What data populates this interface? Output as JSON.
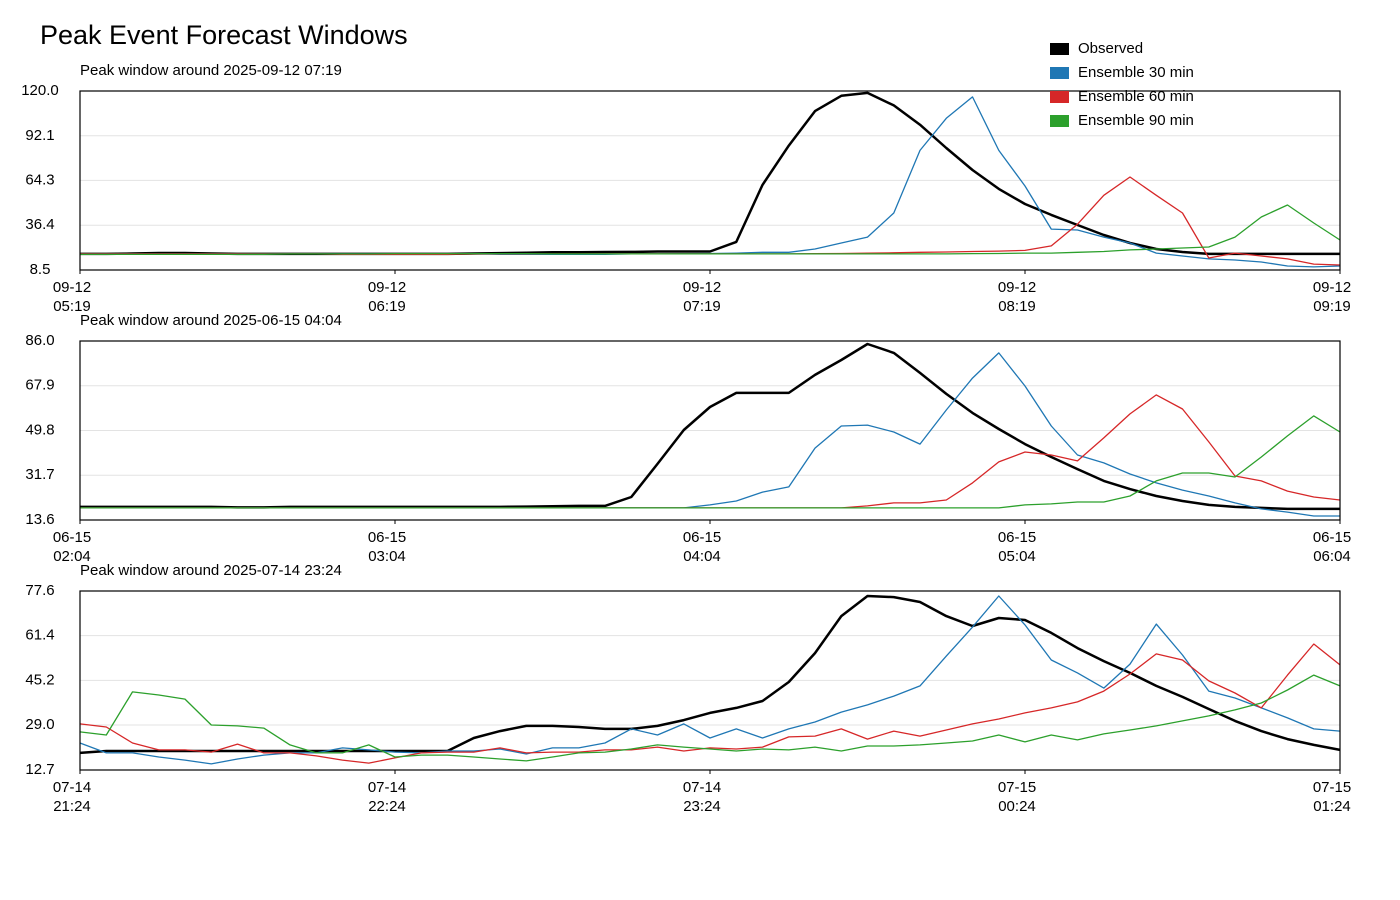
{
  "title": "Peak Event Forecast Windows",
  "legend": "upper right",
  "chart_data": [
    {
      "type": "line",
      "title": "Peak window around 2025-09-12 07:19",
      "grid": true,
      "x": [
        "09-12 05:19",
        "09-12 05:24",
        "09-12 05:29",
        "09-12 05:34",
        "09-12 05:39",
        "09-12 05:44",
        "09-12 05:49",
        "09-12 05:54",
        "09-12 05:59",
        "09-12 06:04",
        "09-12 06:09",
        "09-12 06:14",
        "09-12 06:19",
        "09-12 06:24",
        "09-12 06:29",
        "09-12 06:34",
        "09-12 06:39",
        "09-12 06:44",
        "09-12 06:49",
        "09-12 06:54",
        "09-12 06:59",
        "09-12 07:04",
        "09-12 07:09",
        "09-12 07:14",
        "09-12 07:19",
        "09-12 07:24",
        "09-12 07:29",
        "09-12 07:34",
        "09-12 07:39",
        "09-12 07:44",
        "09-12 07:49",
        "09-12 07:54",
        "09-12 07:59",
        "09-12 08:04",
        "09-12 08:09",
        "09-12 08:14",
        "09-12 08:19",
        "09-12 08:24",
        "09-12 08:29",
        "09-12 08:34",
        "09-12 08:39",
        "09-12 08:44",
        "09-12 08:49",
        "09-12 08:54",
        "09-12 08:59",
        "09-12 09:04",
        "09-12 09:09",
        "09-12 09:14",
        "09-12 09:19"
      ],
      "xlim": [
        "09-12 05:19",
        "09-12 09:19"
      ],
      "xticks": [
        {
          "value": "09-12 05:19",
          "label": "09-12\n05:19"
        },
        {
          "value": "09-12 06:19",
          "label": "09-12\n06:19"
        },
        {
          "value": "09-12 07:19",
          "label": "09-12\n07:19"
        },
        {
          "value": "09-12 08:19",
          "label": "09-12\n08:19"
        },
        {
          "value": "09-12 09:19",
          "label": "09-12\n09:19"
        }
      ],
      "ylim": [
        8.5,
        120
      ],
      "yticks": [
        8.5,
        36.4,
        64.3,
        92.1,
        {
          "value": 120,
          "label": "120.0"
        }
      ],
      "series": [
        {
          "name": "Observed",
          "color": "#000000",
          "width": 2.5,
          "values": [
            18.5,
            18.5,
            18.8,
            19.1,
            19.1,
            18.8,
            18.5,
            18.5,
            18.5,
            18.5,
            18.5,
            18.5,
            18.5,
            18.5,
            18.5,
            18.8,
            19,
            19.2,
            19.5,
            19.5,
            19.7,
            19.8,
            20,
            20,
            20,
            26,
            61.5,
            86,
            107.5,
            117,
            118.8,
            111,
            99,
            84.5,
            70.8,
            59,
            49.6,
            42.8,
            36.5,
            30.3,
            25.3,
            21.6,
            19.7,
            18.5,
            18.5,
            18.5,
            18.5,
            18.5,
            18.5
          ]
        },
        {
          "name": "Ensemble 30 min",
          "color": "#1f77b4",
          "width": 1.3,
          "values": [
            18.5,
            18.5,
            18.5,
            18.5,
            18.5,
            18.5,
            18.5,
            18.5,
            18.5,
            18.5,
            18.5,
            18.5,
            18.5,
            18.5,
            18.5,
            18.5,
            18.2,
            18.2,
            18.2,
            18.2,
            18.2,
            18.5,
            18.5,
            18.7,
            18.8,
            19,
            19.5,
            19.5,
            21.6,
            25.3,
            29,
            44,
            83,
            103,
            116.3,
            83,
            60.8,
            34,
            33.4,
            29,
            25.3,
            19,
            17.2,
            15.4,
            14.7,
            13.5,
            11,
            10.4,
            11
          ]
        },
        {
          "name": "Ensemble 60 min",
          "color": "#d62728",
          "width": 1.3,
          "values": [
            18.5,
            18.5,
            18.5,
            18.5,
            18.5,
            18.5,
            18.5,
            18.5,
            18.5,
            18.5,
            18.3,
            18.3,
            18.3,
            18.3,
            18.3,
            18.5,
            18.5,
            18.5,
            18.5,
            18.5,
            18.5,
            18.5,
            18.5,
            18.5,
            18.5,
            18.5,
            18.5,
            18.5,
            18.7,
            18.8,
            19,
            19.2,
            19.5,
            19.7,
            20,
            20.3,
            20.7,
            23.5,
            37,
            55,
            66.4,
            55,
            44,
            16,
            19,
            17.2,
            15.4,
            12.2,
            11.6
          ]
        },
        {
          "name": "Ensemble 90 min",
          "color": "#2ca02c",
          "width": 1.3,
          "values": [
            18.2,
            18.2,
            18.2,
            18.2,
            18.2,
            18.2,
            18.2,
            18.3,
            18.5,
            18.5,
            18.5,
            18.5,
            18.7,
            18.7,
            18.7,
            18.7,
            18.7,
            18.7,
            18.5,
            18.5,
            18.5,
            18.5,
            18.5,
            18.5,
            18.5,
            18.5,
            18.5,
            18.5,
            18.5,
            18.5,
            18.5,
            18.5,
            18.5,
            18.5,
            18.7,
            18.8,
            19,
            19,
            19.5,
            20,
            21,
            21.6,
            22.2,
            22.8,
            29,
            41.5,
            49,
            37.8,
            27.2
          ]
        }
      ]
    },
    {
      "type": "line",
      "title": "Peak window around 2025-06-15 04:04",
      "grid": true,
      "x": [
        "06-15 02:04",
        "06-15 02:09",
        "06-15 02:14",
        "06-15 02:19",
        "06-15 02:24",
        "06-15 02:29",
        "06-15 02:34",
        "06-15 02:39",
        "06-15 02:44",
        "06-15 02:49",
        "06-15 02:54",
        "06-15 02:59",
        "06-15 03:04",
        "06-15 03:09",
        "06-15 03:14",
        "06-15 03:19",
        "06-15 03:24",
        "06-15 03:29",
        "06-15 03:34",
        "06-15 03:39",
        "06-15 03:44",
        "06-15 03:49",
        "06-15 03:54",
        "06-15 03:59",
        "06-15 04:04",
        "06-15 04:09",
        "06-15 04:14",
        "06-15 04:19",
        "06-15 04:24",
        "06-15 04:29",
        "06-15 04:34",
        "06-15 04:39",
        "06-15 04:44",
        "06-15 04:49",
        "06-15 04:54",
        "06-15 04:59",
        "06-15 05:04",
        "06-15 05:09",
        "06-15 05:14",
        "06-15 05:19",
        "06-15 05:24",
        "06-15 05:29",
        "06-15 05:34",
        "06-15 05:39",
        "06-15 05:44",
        "06-15 05:49",
        "06-15 05:54",
        "06-15 05:59",
        "06-15 06:04"
      ],
      "xlim": [
        "06-15 02:04",
        "06-15 06:04"
      ],
      "xticks": [
        {
          "value": "06-15 02:04",
          "label": "06-15\n02:04"
        },
        {
          "value": "06-15 03:04",
          "label": "06-15\n03:04"
        },
        {
          "value": "06-15 04:04",
          "label": "06-15\n04:04"
        },
        {
          "value": "06-15 05:04",
          "label": "06-15\n05:04"
        },
        {
          "value": "06-15 06:04",
          "label": "06-15\n06:04"
        }
      ],
      "ylim": [
        13.6,
        86
      ],
      "yticks": [
        13.6,
        31.7,
        49.8,
        67.9,
        {
          "value": 86,
          "label": "86.0"
        }
      ],
      "series": [
        {
          "name": "Observed",
          "color": "#000000",
          "width": 2.5,
          "values": [
            18.9,
            18.9,
            18.9,
            18.9,
            18.9,
            18.9,
            18.7,
            18.7,
            18.9,
            18.9,
            18.9,
            18.9,
            18.9,
            18.9,
            18.9,
            18.9,
            18.9,
            19,
            19.2,
            19.3,
            19.3,
            22.9,
            36.3,
            50,
            59.3,
            65,
            65,
            65,
            72.3,
            78.3,
            84.8,
            81.2,
            73.1,
            64.6,
            56.9,
            50.4,
            44.3,
            39.1,
            34.2,
            29.4,
            26.1,
            23.3,
            21.3,
            19.7,
            18.9,
            18.5,
            18.1,
            18.1,
            18.1
          ]
        },
        {
          "name": "Ensemble 30 min",
          "color": "#1f77b4",
          "width": 1.3,
          "values": [
            18.5,
            18.5,
            18.5,
            18.5,
            18.5,
            18.5,
            18.5,
            18.5,
            18.5,
            18.5,
            18.5,
            18.5,
            18.5,
            18.5,
            18.5,
            18.5,
            18.5,
            18.5,
            18.5,
            18.5,
            18.5,
            18.5,
            18.5,
            18.5,
            19.7,
            21.3,
            24.9,
            27,
            42.7,
            51.6,
            52,
            49.2,
            44.3,
            58.1,
            71,
            81.2,
            67.8,
            51.6,
            39.9,
            36.7,
            32.2,
            28.6,
            25.7,
            23.3,
            20.5,
            18.1,
            16.8,
            15.2,
            15.2
          ]
        },
        {
          "name": "Ensemble 60 min",
          "color": "#d62728",
          "width": 1.3,
          "values": [
            18.5,
            18.5,
            18.5,
            18.5,
            18.5,
            18.5,
            18.5,
            18.5,
            18.5,
            18.5,
            18.5,
            18.5,
            18.5,
            18.5,
            18.5,
            18.5,
            18.5,
            18.5,
            18.5,
            18.5,
            18.5,
            18.5,
            18.5,
            18.5,
            18.5,
            18.5,
            18.5,
            18.5,
            18.5,
            18.5,
            19.3,
            20.5,
            20.5,
            21.7,
            28.6,
            37.1,
            41.1,
            39.9,
            37.5,
            46.8,
            56.5,
            64.2,
            58.5,
            45.2,
            31.4,
            29.4,
            25.3,
            22.9,
            21.7
          ]
        },
        {
          "name": "Ensemble 90 min",
          "color": "#2ca02c",
          "width": 1.3,
          "values": [
            18.5,
            18.5,
            18.5,
            18.5,
            18.5,
            18.5,
            18.5,
            18.5,
            18.5,
            18.5,
            18.5,
            18.5,
            18.5,
            18.5,
            18.5,
            18.5,
            18.5,
            18.5,
            18.5,
            18.5,
            18.5,
            18.5,
            18.5,
            18.5,
            18.5,
            18.5,
            18.5,
            18.5,
            18.5,
            18.5,
            18.5,
            18.5,
            18.5,
            18.5,
            18.5,
            18.5,
            19.7,
            20.1,
            20.9,
            20.9,
            23.3,
            29.4,
            32.6,
            32.6,
            31,
            39.1,
            47.6,
            55.7,
            49.2
          ]
        }
      ]
    },
    {
      "type": "line",
      "title": "Peak window around 2025-07-14 23:24",
      "grid": true,
      "x": [
        "07-14 21:24",
        "07-14 21:29",
        "07-14 21:34",
        "07-14 21:39",
        "07-14 21:44",
        "07-14 21:49",
        "07-14 21:54",
        "07-14 21:59",
        "07-14 22:04",
        "07-14 22:09",
        "07-14 22:14",
        "07-14 22:19",
        "07-14 22:24",
        "07-14 22:29",
        "07-14 22:34",
        "07-14 22:39",
        "07-14 22:44",
        "07-14 22:49",
        "07-14 22:54",
        "07-14 22:59",
        "07-14 23:04",
        "07-14 23:09",
        "07-14 23:14",
        "07-14 23:19",
        "07-14 23:24",
        "07-14 23:29",
        "07-14 23:34",
        "07-14 23:39",
        "07-14 23:44",
        "07-14 23:49",
        "07-14 23:54",
        "07-14 23:59",
        "07-15 00:04",
        "07-15 00:09",
        "07-15 00:14",
        "07-15 00:19",
        "07-15 00:24",
        "07-15 00:29",
        "07-15 00:34",
        "07-15 00:39",
        "07-15 00:44",
        "07-15 00:49",
        "07-15 00:54",
        "07-15 00:59",
        "07-15 01:04",
        "07-15 01:09",
        "07-15 01:14",
        "07-15 01:19",
        "07-15 01:24"
      ],
      "xlim": [
        "07-14 21:24",
        "07-15 01:24"
      ],
      "xticks": [
        {
          "value": "07-14 21:24",
          "label": "07-14\n21:24"
        },
        {
          "value": "07-14 22:24",
          "label": "07-14\n22:24"
        },
        {
          "value": "07-14 23:24",
          "label": "07-14\n23:24"
        },
        {
          "value": "07-15 00:24",
          "label": "07-15\n00:24"
        },
        {
          "value": "07-15 01:24",
          "label": "07-15\n01:24"
        }
      ],
      "ylim": [
        12.7,
        77.6
      ],
      "yticks": [
        12.7,
        {
          "value": 29,
          "label": "29.0"
        },
        45.2,
        61.4,
        77.6
      ],
      "series": [
        {
          "name": "Observed",
          "color": "#000000",
          "width": 2.5,
          "values": [
            18.9,
            19.6,
            19.6,
            19.6,
            19.6,
            19.6,
            19.6,
            19.6,
            19.6,
            19.6,
            19.6,
            19.6,
            19.6,
            19.6,
            19.6,
            24.3,
            26.8,
            28.7,
            28.7,
            28.3,
            27.6,
            27.6,
            28.7,
            30.8,
            33.4,
            35.2,
            37.7,
            44.6,
            55.1,
            68.5,
            75.8,
            75.4,
            73.6,
            68.5,
            64.9,
            67.8,
            67.1,
            62.4,
            56.9,
            52.2,
            47.9,
            43.2,
            39.2,
            34.8,
            30.5,
            26.8,
            23.9,
            21.8,
            20
          ]
        },
        {
          "name": "Ensemble 30 min",
          "color": "#1f77b4",
          "width": 1.3,
          "values": [
            22.5,
            18.9,
            18.9,
            17.4,
            16.3,
            14.9,
            16.7,
            18.1,
            18.9,
            18.9,
            20.7,
            20,
            19.2,
            18.9,
            19.6,
            19.6,
            20.3,
            18.5,
            20.7,
            20.7,
            22.5,
            27.6,
            25.4,
            29.4,
            24.3,
            27.6,
            24.3,
            27.6,
            30.1,
            33.7,
            36.3,
            39.5,
            43.2,
            54,
            64.5,
            75.8,
            65.3,
            52.6,
            47.9,
            42.4,
            51.1,
            65.6,
            54.4,
            41.3,
            38.8,
            35.2,
            31.6,
            27.6,
            26.8
          ]
        },
        {
          "name": "Ensemble 60 min",
          "color": "#d62728",
          "width": 1.3,
          "values": [
            29.4,
            28.3,
            22.5,
            20,
            20,
            19.2,
            22.1,
            18.9,
            18.9,
            17.8,
            16.3,
            15.2,
            17.1,
            18.9,
            19.2,
            19.2,
            20.7,
            18.9,
            19.2,
            19.2,
            20,
            20,
            21,
            19.6,
            20.7,
            20.3,
            21,
            24.7,
            25,
            27.6,
            23.9,
            26.8,
            25,
            27.2,
            29.4,
            31.2,
            33.4,
            35.2,
            37.4,
            41.3,
            47.5,
            54.8,
            52.6,
            45,
            40.6,
            35.2,
            47.1,
            58.4,
            50.8
          ]
        },
        {
          "name": "Ensemble 90 min",
          "color": "#2ca02c",
          "width": 1.3,
          "values": [
            26.5,
            25.4,
            41,
            39.9,
            38.4,
            29,
            28.7,
            27.9,
            21.8,
            18.9,
            18.9,
            21.8,
            17.4,
            18.1,
            18.1,
            17.4,
            16.7,
            16,
            17.4,
            18.9,
            19.2,
            20.3,
            21.8,
            21,
            20.3,
            19.6,
            20.3,
            20,
            21,
            19.6,
            21.4,
            21.4,
            21.8,
            22.5,
            23.2,
            25.4,
            22.9,
            25.4,
            23.6,
            25.8,
            27.2,
            28.7,
            30.5,
            32.3,
            34.5,
            37,
            41.7,
            47.1,
            43.2
          ]
        }
      ]
    }
  ]
}
